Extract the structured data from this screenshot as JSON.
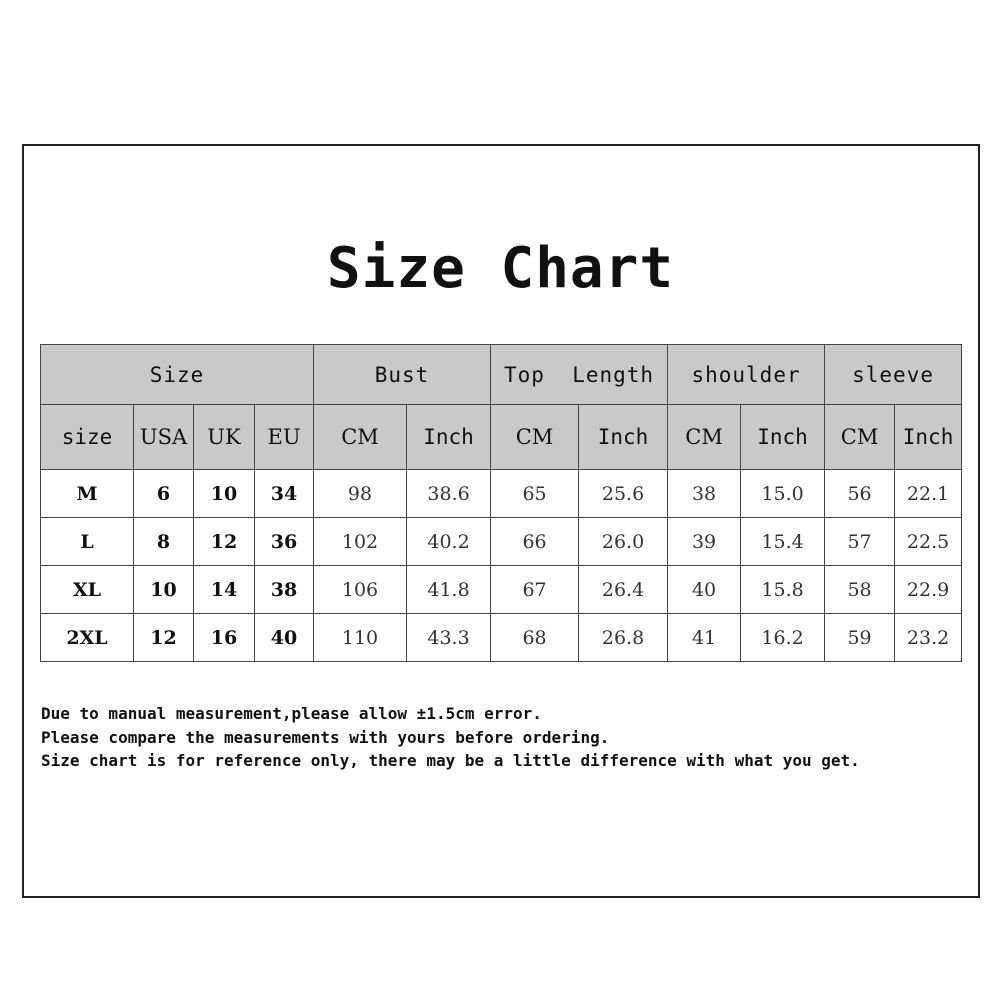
{
  "title": "Size Chart",
  "table": {
    "group_headers": [
      "Size",
      "Bust",
      "Top  Length",
      "shoulder",
      "sleeve"
    ],
    "sub_headers": [
      "size",
      "USA",
      "UK",
      "EU",
      "CM",
      "Inch",
      "CM",
      "Inch",
      "CM",
      "Inch",
      "CM",
      "Inch"
    ],
    "rows": [
      [
        "M",
        "6",
        "10",
        "34",
        "98",
        "38.6",
        "65",
        "25.6",
        "38",
        "15.0",
        "56",
        "22.1"
      ],
      [
        "L",
        "8",
        "12",
        "36",
        "102",
        "40.2",
        "66",
        "26.0",
        "39",
        "15.4",
        "57",
        "22.5"
      ],
      [
        "XL",
        "10",
        "14",
        "38",
        "106",
        "41.8",
        "67",
        "26.4",
        "40",
        "15.8",
        "58",
        "22.9"
      ],
      [
        "2XL",
        "12",
        "16",
        "40",
        "110",
        "43.3",
        "68",
        "26.8",
        "41",
        "16.2",
        "59",
        "23.2"
      ]
    ]
  },
  "notes": [
    "Due to manual measurement,please allow ±1.5cm error.",
    "Please compare the measurements with yours before ordering.",
    "Size chart is for reference only, there may be a little difference with what you get."
  ],
  "colors": {
    "header_bg": "#c9c9c9",
    "border": "#444444"
  }
}
